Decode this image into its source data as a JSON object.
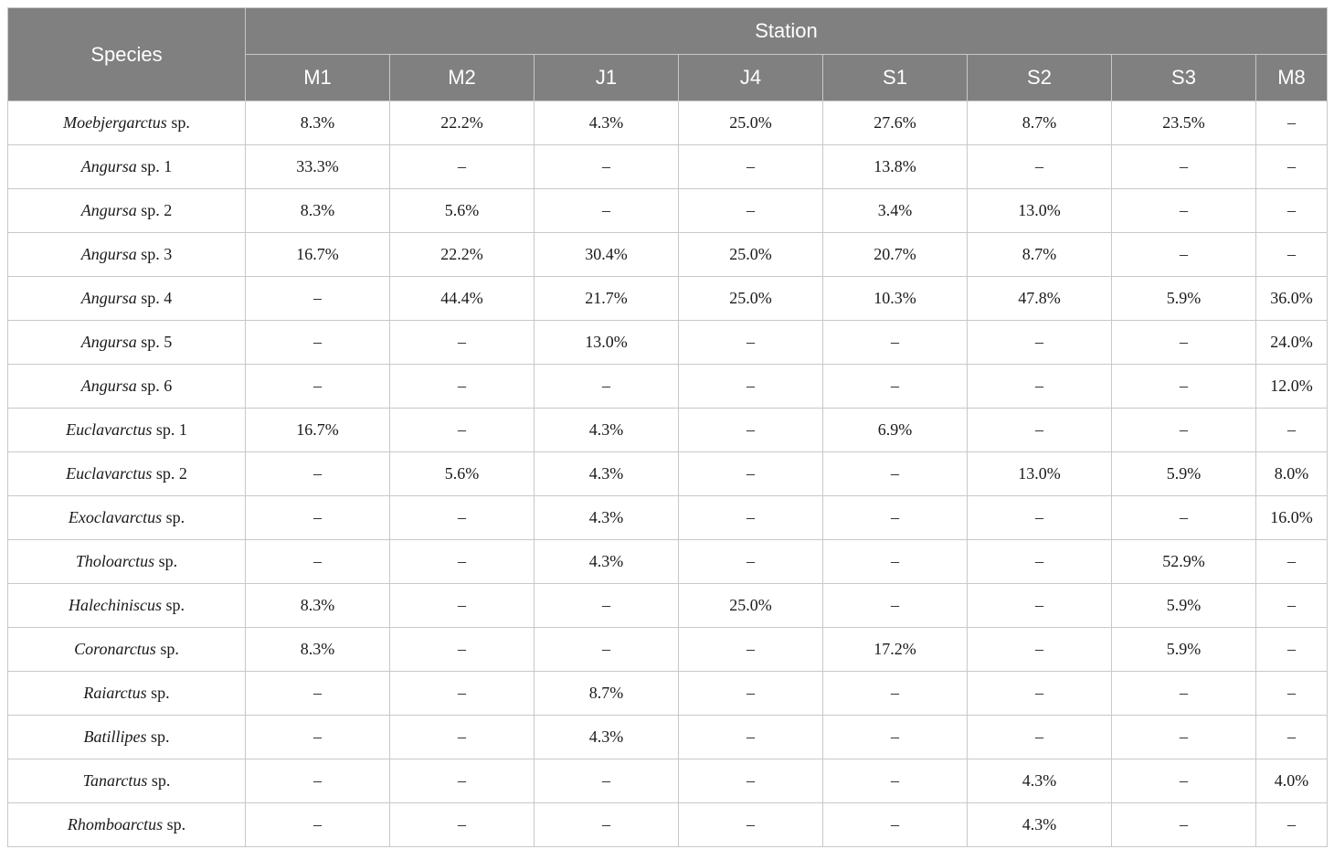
{
  "header": {
    "species_label": "Species",
    "group_label": "Station",
    "stations": [
      "M1",
      "M2",
      "J1",
      "J4",
      "S1",
      "S2",
      "S3",
      "M8"
    ]
  },
  "rows": [
    {
      "genus": "Moebjergarctus",
      "suffix": "sp.",
      "values": [
        "8.3%",
        "22.2%",
        "4.3%",
        "25.0%",
        "27.6%",
        "8.7%",
        "23.5%",
        "–"
      ]
    },
    {
      "genus": "Angursa",
      "suffix": "sp. 1",
      "values": [
        "33.3%",
        "–",
        "–",
        "–",
        "13.8%",
        "–",
        "–",
        "–"
      ]
    },
    {
      "genus": "Angursa",
      "suffix": "sp. 2",
      "values": [
        "8.3%",
        "5.6%",
        "–",
        "–",
        "3.4%",
        "13.0%",
        "–",
        "–"
      ]
    },
    {
      "genus": "Angursa",
      "suffix": "sp. 3",
      "values": [
        "16.7%",
        "22.2%",
        "30.4%",
        "25.0%",
        "20.7%",
        "8.7%",
        "–",
        "–"
      ]
    },
    {
      "genus": "Angursa",
      "suffix": "sp. 4",
      "values": [
        "–",
        "44.4%",
        "21.7%",
        "25.0%",
        "10.3%",
        "47.8%",
        "5.9%",
        "36.0%"
      ]
    },
    {
      "genus": "Angursa",
      "suffix": "sp. 5",
      "values": [
        "–",
        "–",
        "13.0%",
        "–",
        "–",
        "–",
        "–",
        "24.0%"
      ]
    },
    {
      "genus": "Angursa",
      "suffix": "sp. 6",
      "values": [
        "–",
        "–",
        "–",
        "–",
        "–",
        "–",
        "–",
        "12.0%"
      ]
    },
    {
      "genus": "Euclavarctus",
      "suffix": "sp. 1",
      "values": [
        "16.7%",
        "–",
        "4.3%",
        "–",
        "6.9%",
        "–",
        "–",
        "–"
      ]
    },
    {
      "genus": "Euclavarctus",
      "suffix": "sp. 2",
      "values": [
        "–",
        "5.6%",
        "4.3%",
        "–",
        "–",
        "13.0%",
        "5.9%",
        "8.0%"
      ]
    },
    {
      "genus": "Exoclavarctus",
      "suffix": "sp.",
      "values": [
        "–",
        "–",
        "4.3%",
        "–",
        "–",
        "–",
        "–",
        "16.0%"
      ]
    },
    {
      "genus": "Tholoarctus",
      "suffix": "sp.",
      "values": [
        "–",
        "–",
        "4.3%",
        "–",
        "–",
        "–",
        "52.9%",
        "–"
      ]
    },
    {
      "genus": "Halechiniscus",
      "suffix": "sp.",
      "values": [
        "8.3%",
        "–",
        "–",
        "25.0%",
        "–",
        "–",
        "5.9%",
        "–"
      ]
    },
    {
      "genus": "Coronarctus",
      "suffix": "sp.",
      "values": [
        "8.3%",
        "–",
        "–",
        "–",
        "17.2%",
        "–",
        "5.9%",
        "–"
      ]
    },
    {
      "genus": "Raiarctus",
      "suffix": "sp.",
      "values": [
        "–",
        "–",
        "8.7%",
        "–",
        "–",
        "–",
        "–",
        "–"
      ]
    },
    {
      "genus": "Batillipes",
      "suffix": "sp.",
      "values": [
        "–",
        "–",
        "4.3%",
        "–",
        "–",
        "–",
        "–",
        "–"
      ]
    },
    {
      "genus": "Tanarctus",
      "suffix": "sp.",
      "values": [
        "–",
        "–",
        "–",
        "–",
        "–",
        "4.3%",
        "–",
        "4.0%"
      ]
    },
    {
      "genus": "Rhomboarctus",
      "suffix": "sp.",
      "values": [
        "–",
        "–",
        "–",
        "–",
        "–",
        "4.3%",
        "–",
        "–"
      ]
    }
  ]
}
